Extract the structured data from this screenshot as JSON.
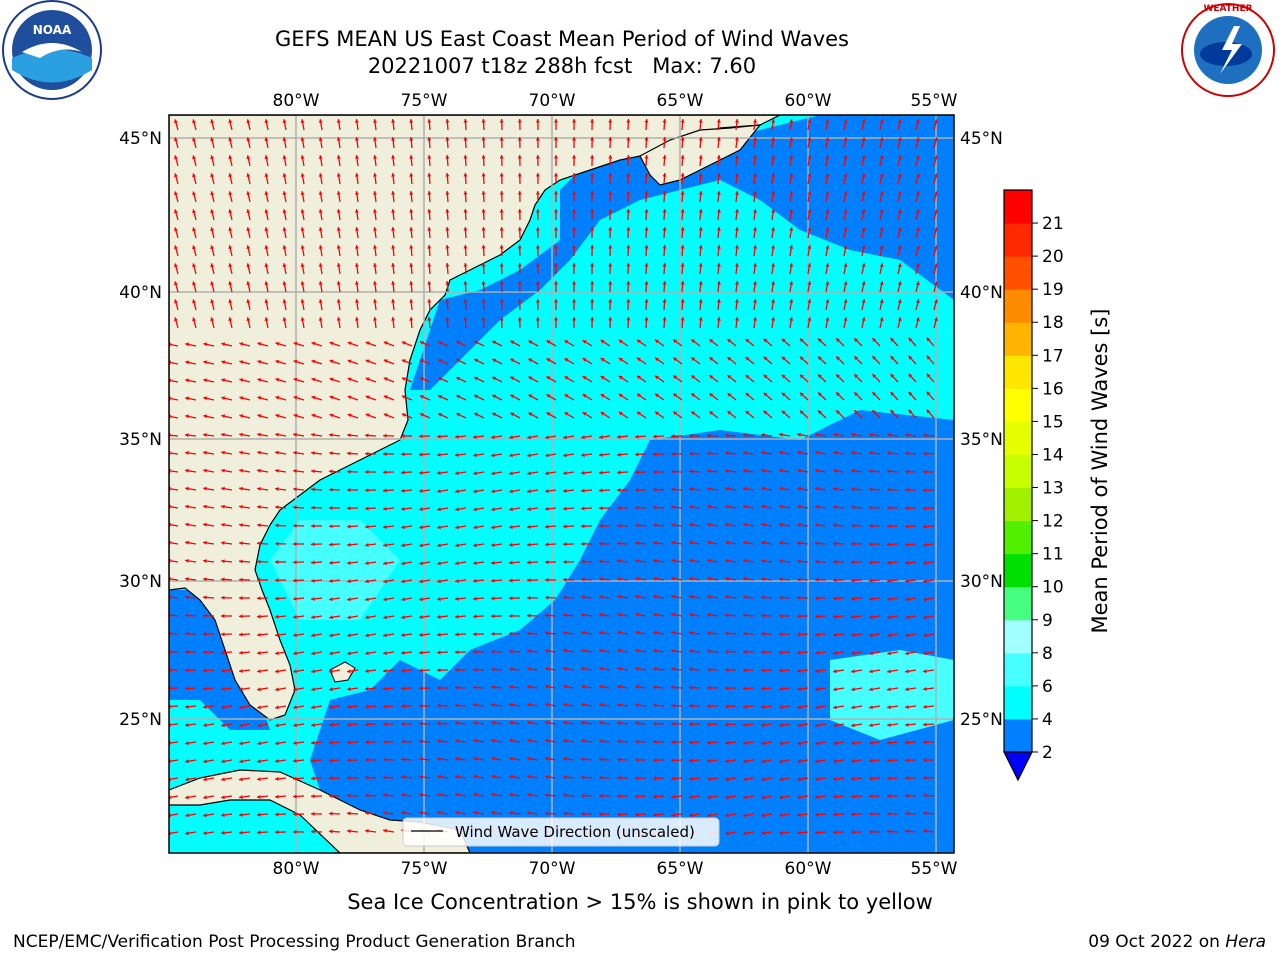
{
  "title": {
    "line1": "GEFS MEAN US East Coast Mean Period of Wind Waves",
    "line2": "20221007 t18z 288h fcst   Max: 7.60"
  },
  "subtitle": "Sea Ice Concentration > 15% is shown in pink to yellow",
  "footer": {
    "left": "NCEP/EMC/Verification Post Processing Product Generation Branch",
    "date": "09 Oct 2022 on",
    "machine": "Hera"
  },
  "logos": {
    "left": "noaa-logo",
    "right": "nws-logo"
  },
  "map": {
    "lon_ticks": [
      "80°W",
      "75°W",
      "70°W",
      "65°W",
      "60°W",
      "55°W"
    ],
    "lat_ticks": [
      "45°N",
      "40°N",
      "35°N",
      "30°N",
      "25°N"
    ],
    "legend": "Wind Wave Direction (unscaled)",
    "colors": {
      "land": "#efefdc",
      "ocean_light": "#00ffff",
      "ocean_dark": "#0080ff",
      "arrow": "#ff0000",
      "grid": "#b0b0b0"
    }
  },
  "colorbar": {
    "label": "Mean Period of Wind Waves [s]",
    "ticks": [
      "2",
      "4",
      "6",
      "8",
      "9",
      "10",
      "11",
      "12",
      "13",
      "14",
      "15",
      "16",
      "17",
      "18",
      "19",
      "20",
      "21"
    ],
    "colors": [
      "#0080ff",
      "#00ffff",
      "#46ffff",
      "#a0ffff",
      "#46ff80",
      "#00e000",
      "#50f000",
      "#a0f000",
      "#c8ff00",
      "#e6ff00",
      "#ffff00",
      "#ffe600",
      "#ffb400",
      "#ff8c00",
      "#ff5000",
      "#ff2800",
      "#ff0000"
    ],
    "under_color": "#0000ff"
  }
}
